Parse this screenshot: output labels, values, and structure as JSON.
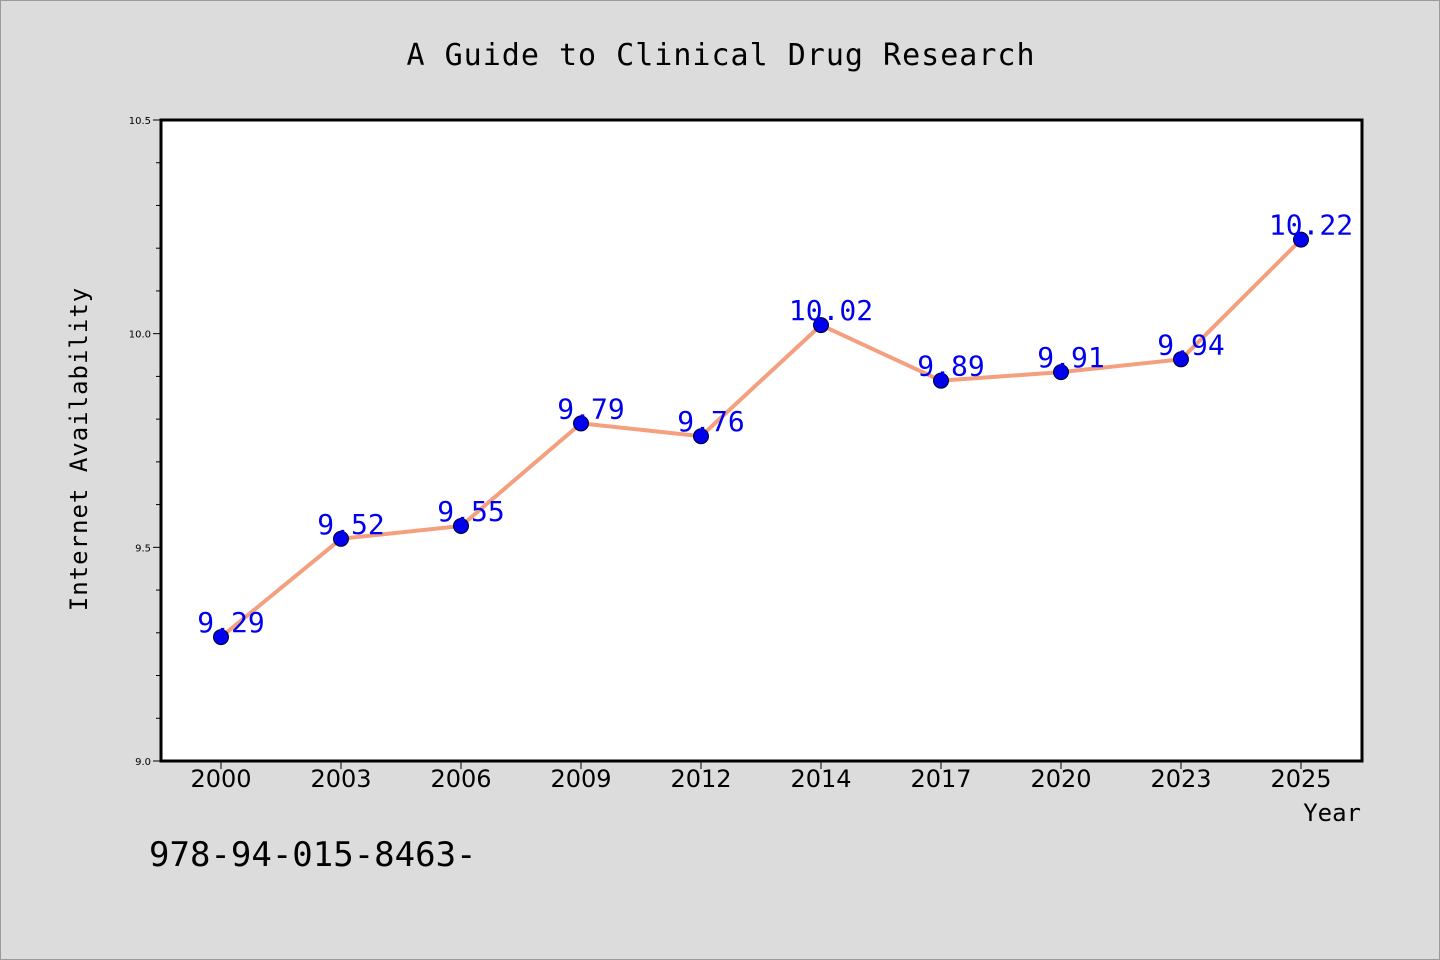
{
  "chart_data": {
    "type": "line",
    "title": "A Guide to Clinical Drug Research",
    "xlabel": "Year",
    "ylabel": "Internet Availability",
    "categories": [
      "2000",
      "2003",
      "2006",
      "2009",
      "2012",
      "2014",
      "2017",
      "2020",
      "2023",
      "2025"
    ],
    "series": [
      {
        "values": [
          9.29,
          9.52,
          9.55,
          9.79,
          9.76,
          10.02,
          9.89,
          9.91,
          9.94,
          10.22
        ],
        "data_labels": [
          "9.29",
          "9.52",
          "9.55",
          "9.79",
          "9.76",
          "10.02",
          "9.89",
          "9.91",
          "9.94",
          "10.22"
        ],
        "line_color": "#f4a07f",
        "marker_color": "#0000ee",
        "label_color": "#0000ee"
      }
    ],
    "ylim": [
      9.0,
      10.5
    ],
    "yticks": [
      "9.0",
      "9.5",
      "10.0",
      "10.5"
    ],
    "grid": false,
    "legend": "none"
  },
  "footer_text": "978-94-015-8463-",
  "colors": {
    "background": "#dcdcdc",
    "plot_background": "#ffffff",
    "axis": "#000000"
  }
}
